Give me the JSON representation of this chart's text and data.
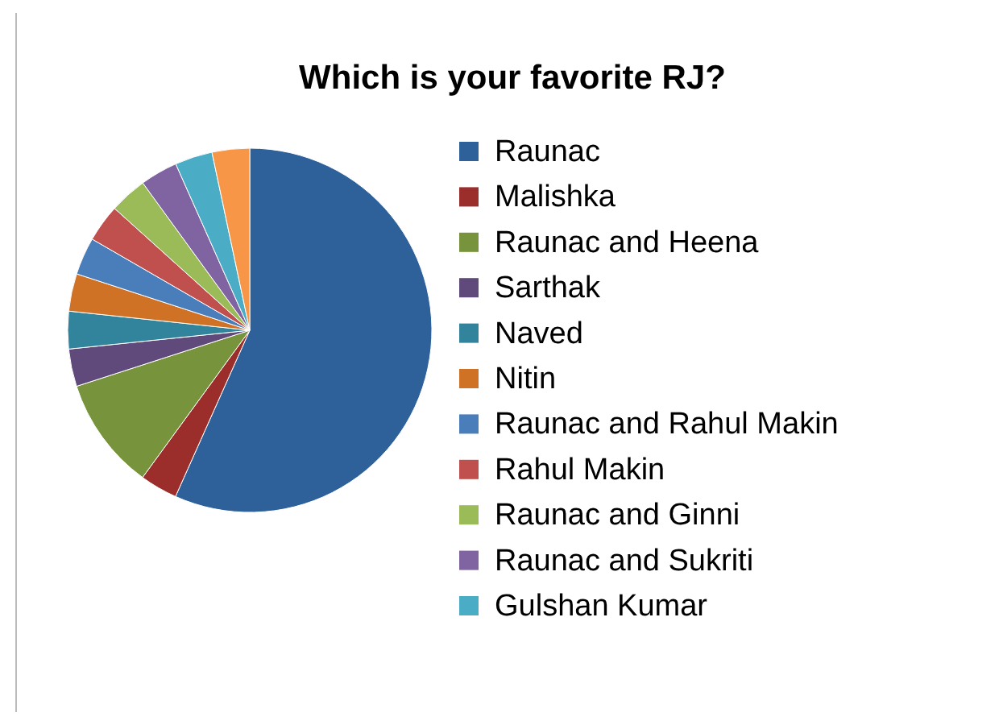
{
  "chart_data": {
    "type": "pie",
    "title": "Which is your favorite RJ?",
    "categories": [
      "Raunac",
      "Malishka",
      "Raunac and Heena",
      "Sarthak",
      "Naved",
      "Nitin",
      "Raunac and Rahul Makin",
      "Rahul Makin",
      "Raunac and Ginni",
      "Raunac and Sukriti",
      "Gulshan Kumar",
      null
    ],
    "values": [
      56.67,
      3.33,
      10,
      3.33,
      3.33,
      3.33,
      3.33,
      3.33,
      3.33,
      3.33,
      3.33,
      3.33
    ],
    "colors": [
      "#2e6099",
      "#9b2d2a",
      "#77933c",
      "#604a7b",
      "#31849b",
      "#d07226",
      "#4a7ebb",
      "#c0504d",
      "#9bbb59",
      "#8064a2",
      "#4bacc6",
      "#f79646"
    ],
    "legend": "right"
  }
}
